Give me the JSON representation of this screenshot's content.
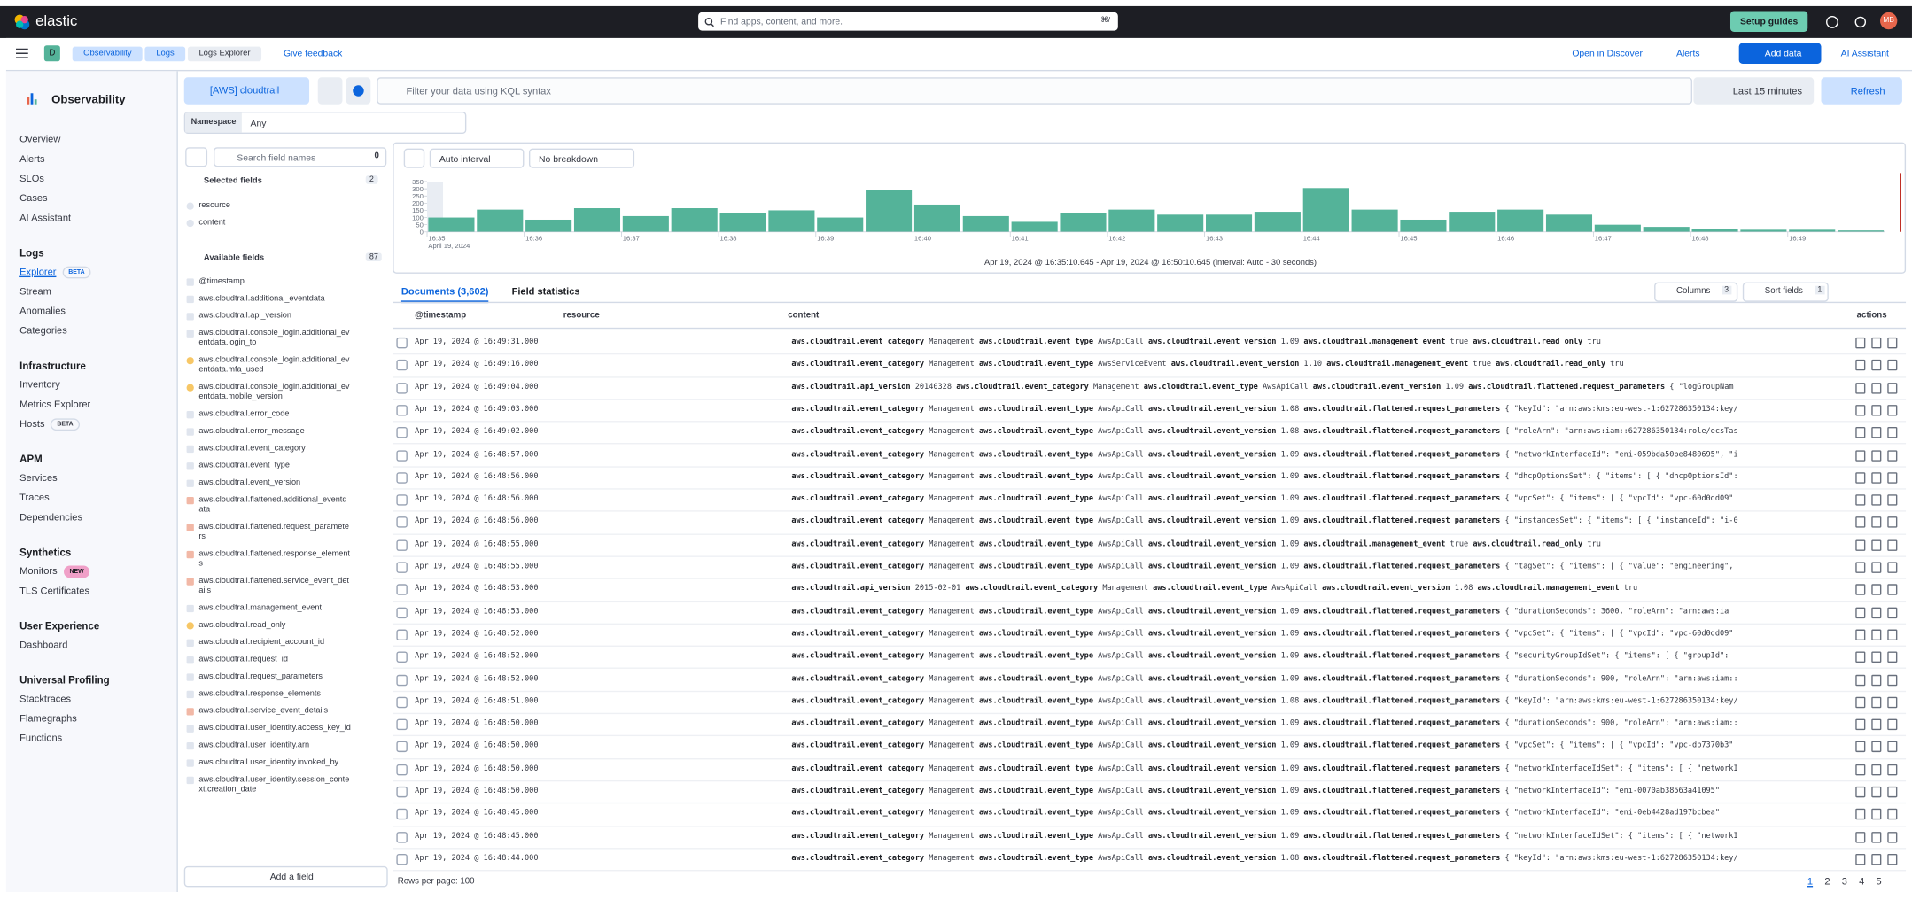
{
  "header": {
    "brand": "elastic",
    "search": "Find apps, content, and more.",
    "shortcut": "⌘/",
    "setup": "Setup guides",
    "avatar": "MB"
  },
  "breadcrumb": {
    "space": "D",
    "items": [
      "Observability",
      "Logs",
      "Logs Explorer"
    ],
    "feedback": "Give feedback",
    "open_discover": "Open in Discover",
    "alerts": "Alerts",
    "add_data": "Add data",
    "ai_assistant": "AI Assistant"
  },
  "sidebar": {
    "title": "Observability",
    "top_items": [
      {
        "label": "Overview"
      },
      {
        "label": "Alerts"
      },
      {
        "label": "SLOs"
      },
      {
        "label": "Cases"
      },
      {
        "label": "AI Assistant"
      }
    ],
    "sections": [
      {
        "heading": "Logs",
        "items": [
          {
            "label": "Explorer",
            "badge": "BETA"
          },
          {
            "label": "Stream"
          },
          {
            "label": "Anomalies"
          },
          {
            "label": "Categories"
          }
        ]
      },
      {
        "heading": "Infrastructure",
        "items": [
          {
            "label": "Inventory"
          },
          {
            "label": "Metrics Explorer"
          },
          {
            "label": "Hosts",
            "badge": "BETA"
          }
        ]
      },
      {
        "heading": "APM",
        "items": [
          {
            "label": "Services"
          },
          {
            "label": "Traces"
          },
          {
            "label": "Dependencies"
          }
        ]
      },
      {
        "heading": "Synthetics",
        "items": [
          {
            "label": "Monitors",
            "badge": "NEW"
          },
          {
            "label": "TLS Certificates"
          }
        ]
      },
      {
        "heading": "User Experience",
        "items": [
          {
            "label": "Dashboard"
          }
        ]
      },
      {
        "heading": "Universal Profiling",
        "items": [
          {
            "label": "Stacktraces"
          },
          {
            "label": "Flamegraphs"
          },
          {
            "label": "Functions"
          }
        ]
      }
    ]
  },
  "query": {
    "data_view": "[AWS] cloudtrail",
    "placeholder": "Filter your data using KQL syntax",
    "time": "Last 15 minutes",
    "refresh": "Refresh",
    "namespace_label": "Namespace",
    "namespace_value": "Any"
  },
  "fields": {
    "search_placeholder": "Search field names",
    "filter_count": 0,
    "selected_title": "Selected fields",
    "selected_count": 2,
    "selected": [
      "resource",
      "content"
    ],
    "available_title": "Available fields",
    "available_count": 87,
    "available": [
      "@timestamp",
      "aws.cloudtrail.additional_eventdata",
      "aws.cloudtrail.api_version",
      "aws.cloudtrail.console_login.additional_eventdata.login_to",
      "aws.cloudtrail.console_login.additional_eventdata.mfa_used",
      "aws.cloudtrail.console_login.additional_eventdata.mobile_version",
      "aws.cloudtrail.error_code",
      "aws.cloudtrail.error_message",
      "aws.cloudtrail.event_category",
      "aws.cloudtrail.event_type",
      "aws.cloudtrail.event_version",
      "aws.cloudtrail.flattened.additional_eventdata",
      "aws.cloudtrail.flattened.request_parameters",
      "aws.cloudtrail.flattened.response_elements",
      "aws.cloudtrail.flattened.service_event_details",
      "aws.cloudtrail.management_event",
      "aws.cloudtrail.read_only",
      "aws.cloudtrail.recipient_account_id",
      "aws.cloudtrail.request_id",
      "aws.cloudtrail.request_parameters",
      "aws.cloudtrail.response_elements",
      "aws.cloudtrail.service_event_details",
      "aws.cloudtrail.user_identity.access_key_id",
      "aws.cloudtrail.user_identity.arn",
      "aws.cloudtrail.user_identity.invoked_by",
      "aws.cloudtrail.user_identity.session_context.creation_date"
    ],
    "add": "Add a field"
  },
  "histogram": {
    "interval": "Auto interval",
    "breakdown": "No breakdown",
    "ylim": [
      0,
      350
    ],
    "yticks": [
      0,
      50,
      100,
      150,
      200,
      250,
      300,
      350
    ],
    "x_labels": [
      "16:35",
      "16:36",
      "16:37",
      "16:38",
      "16:39",
      "16:40",
      "16:41",
      "16:42",
      "16:43",
      "16:44",
      "16:45",
      "16:46",
      "16:47",
      "16:48",
      "16:49"
    ],
    "date_label": "April 19, 2024",
    "values": [
      100,
      155,
      85,
      165,
      110,
      165,
      130,
      150,
      100,
      290,
      190,
      110,
      70,
      130,
      155,
      120,
      120,
      140,
      305,
      155,
      85,
      140,
      155,
      120,
      50,
      35,
      20,
      15,
      15,
      10
    ],
    "range_caption": "Apr 19, 2024 @ 16:35:10.645 - Apr 19, 2024 @ 16:50:10.645 (interval: Auto - 30 seconds)"
  },
  "tabs": {
    "documents": "Documents (3,602)",
    "stats": "Field statistics",
    "columns": "Columns",
    "columns_count": 3,
    "sort": "Sort fields",
    "sort_count": 1
  },
  "table": {
    "columns": [
      "@timestamp",
      "resource",
      "content",
      "actions"
    ],
    "rows": [
      {
        "timestamp": "Apr 19, 2024 @ 16:49:31.000",
        "content": [
          "aws.cloudtrail.event_category",
          "Management",
          "aws.cloudtrail.event_type",
          "AwsApiCall",
          "aws.cloudtrail.event_version",
          "1.09",
          "aws.cloudtrail.management_event",
          "true",
          "aws.cloudtrail.read_only",
          "tru"
        ]
      },
      {
        "timestamp": "Apr 19, 2024 @ 16:49:16.000",
        "content": [
          "aws.cloudtrail.event_category",
          "Management",
          "aws.cloudtrail.event_type",
          "AwsServiceEvent",
          "aws.cloudtrail.event_version",
          "1.10",
          "aws.cloudtrail.management_event",
          "true",
          "aws.cloudtrail.read_only",
          "tru"
        ]
      },
      {
        "timestamp": "Apr 19, 2024 @ 16:49:04.000",
        "content": [
          "aws.cloudtrail.api_version",
          "20140328",
          "aws.cloudtrail.event_category",
          "Management",
          "aws.cloudtrail.event_type",
          "AwsApiCall",
          "aws.cloudtrail.event_version",
          "1.09",
          "aws.cloudtrail.flattened.request_parameters",
          "{ \"logGroupNam"
        ]
      },
      {
        "timestamp": "Apr 19, 2024 @ 16:49:03.000",
        "content": [
          "aws.cloudtrail.event_category",
          "Management",
          "aws.cloudtrail.event_type",
          "AwsApiCall",
          "aws.cloudtrail.event_version",
          "1.08",
          "aws.cloudtrail.flattened.request_parameters",
          "{ \"keyId\": \"arn:aws:kms:eu-west-1:627286350134:key/"
        ]
      },
      {
        "timestamp": "Apr 19, 2024 @ 16:49:02.000",
        "content": [
          "aws.cloudtrail.event_category",
          "Management",
          "aws.cloudtrail.event_type",
          "AwsApiCall",
          "aws.cloudtrail.event_version",
          "1.08",
          "aws.cloudtrail.flattened.request_parameters",
          "{ \"roleArn\": \"arn:aws:iam::627286350134:role/ecsTas"
        ]
      },
      {
        "timestamp": "Apr 19, 2024 @ 16:48:57.000",
        "content": [
          "aws.cloudtrail.event_category",
          "Management",
          "aws.cloudtrail.event_type",
          "AwsApiCall",
          "aws.cloudtrail.event_version",
          "1.09",
          "aws.cloudtrail.flattened.request_parameters",
          "{ \"networkInterfaceId\": \"eni-059bda50be8480695\", \"i"
        ]
      },
      {
        "timestamp": "Apr 19, 2024 @ 16:48:56.000",
        "content": [
          "aws.cloudtrail.event_category",
          "Management",
          "aws.cloudtrail.event_type",
          "AwsApiCall",
          "aws.cloudtrail.event_version",
          "1.09",
          "aws.cloudtrail.flattened.request_parameters",
          "{ \"dhcpOptionsSet\": { \"items\": [ { \"dhcpOptionsId\":"
        ]
      },
      {
        "timestamp": "Apr 19, 2024 @ 16:48:56.000",
        "content": [
          "aws.cloudtrail.event_category",
          "Management",
          "aws.cloudtrail.event_type",
          "AwsApiCall",
          "aws.cloudtrail.event_version",
          "1.09",
          "aws.cloudtrail.flattened.request_parameters",
          "{ \"vpcSet\": { \"items\": [ { \"vpcId\": \"vpc-60d0dd09\""
        ]
      },
      {
        "timestamp": "Apr 19, 2024 @ 16:48:56.000",
        "content": [
          "aws.cloudtrail.event_category",
          "Management",
          "aws.cloudtrail.event_type",
          "AwsApiCall",
          "aws.cloudtrail.event_version",
          "1.09",
          "aws.cloudtrail.flattened.request_parameters",
          "{ \"instancesSet\": { \"items\": [ { \"instanceId\": \"i-0"
        ]
      },
      {
        "timestamp": "Apr 19, 2024 @ 16:48:55.000",
        "content": [
          "aws.cloudtrail.event_category",
          "Management",
          "aws.cloudtrail.event_type",
          "AwsApiCall",
          "aws.cloudtrail.event_version",
          "1.09",
          "aws.cloudtrail.management_event",
          "true",
          "aws.cloudtrail.read_only",
          "tru"
        ]
      },
      {
        "timestamp": "Apr 19, 2024 @ 16:48:55.000",
        "content": [
          "aws.cloudtrail.event_category",
          "Management",
          "aws.cloudtrail.event_type",
          "AwsApiCall",
          "aws.cloudtrail.event_version",
          "1.09",
          "aws.cloudtrail.flattened.request_parameters",
          "{ \"tagSet\": { \"items\": [ { \"value\": \"engineering\","
        ]
      },
      {
        "timestamp": "Apr 19, 2024 @ 16:48:53.000",
        "content": [
          "aws.cloudtrail.api_version",
          "2015-02-01",
          "aws.cloudtrail.event_category",
          "Management",
          "aws.cloudtrail.event_type",
          "AwsApiCall",
          "aws.cloudtrail.event_version",
          "1.08",
          "aws.cloudtrail.management_event",
          "tru"
        ]
      },
      {
        "timestamp": "Apr 19, 2024 @ 16:48:53.000",
        "content": [
          "aws.cloudtrail.event_category",
          "Management",
          "aws.cloudtrail.event_type",
          "AwsApiCall",
          "aws.cloudtrail.event_version",
          "1.09",
          "aws.cloudtrail.flattened.request_parameters",
          "{ \"durationSeconds\": 3600, \"roleArn\": \"arn:aws:ia"
        ]
      },
      {
        "timestamp": "Apr 19, 2024 @ 16:48:52.000",
        "content": [
          "aws.cloudtrail.event_category",
          "Management",
          "aws.cloudtrail.event_type",
          "AwsApiCall",
          "aws.cloudtrail.event_version",
          "1.09",
          "aws.cloudtrail.flattened.request_parameters",
          "{ \"vpcSet\": { \"items\": [ { \"vpcId\": \"vpc-60d0dd09\""
        ]
      },
      {
        "timestamp": "Apr 19, 2024 @ 16:48:52.000",
        "content": [
          "aws.cloudtrail.event_category",
          "Management",
          "aws.cloudtrail.event_type",
          "AwsApiCall",
          "aws.cloudtrail.event_version",
          "1.09",
          "aws.cloudtrail.flattened.request_parameters",
          "{ \"securityGroupIdSet\": { \"items\": [ { \"groupId\":"
        ]
      },
      {
        "timestamp": "Apr 19, 2024 @ 16:48:52.000",
        "content": [
          "aws.cloudtrail.event_category",
          "Management",
          "aws.cloudtrail.event_type",
          "AwsApiCall",
          "aws.cloudtrail.event_version",
          "1.09",
          "aws.cloudtrail.flattened.request_parameters",
          "{ \"durationSeconds\": 900, \"roleArn\": \"arn:aws:iam::"
        ]
      },
      {
        "timestamp": "Apr 19, 2024 @ 16:48:51.000",
        "content": [
          "aws.cloudtrail.event_category",
          "Management",
          "aws.cloudtrail.event_type",
          "AwsApiCall",
          "aws.cloudtrail.event_version",
          "1.08",
          "aws.cloudtrail.flattened.request_parameters",
          "{ \"keyId\": \"arn:aws:kms:eu-west-1:627286350134:key/"
        ]
      },
      {
        "timestamp": "Apr 19, 2024 @ 16:48:50.000",
        "content": [
          "aws.cloudtrail.event_category",
          "Management",
          "aws.cloudtrail.event_type",
          "AwsApiCall",
          "aws.cloudtrail.event_version",
          "1.09",
          "aws.cloudtrail.flattened.request_parameters",
          "{ \"durationSeconds\": 900, \"roleArn\": \"arn:aws:iam::"
        ]
      },
      {
        "timestamp": "Apr 19, 2024 @ 16:48:50.000",
        "content": [
          "aws.cloudtrail.event_category",
          "Management",
          "aws.cloudtrail.event_type",
          "AwsApiCall",
          "aws.cloudtrail.event_version",
          "1.09",
          "aws.cloudtrail.flattened.request_parameters",
          "{ \"vpcSet\": { \"items\": [ { \"vpcId\": \"vpc-db7370b3\""
        ]
      },
      {
        "timestamp": "Apr 19, 2024 @ 16:48:50.000",
        "content": [
          "aws.cloudtrail.event_category",
          "Management",
          "aws.cloudtrail.event_type",
          "AwsApiCall",
          "aws.cloudtrail.event_version",
          "1.09",
          "aws.cloudtrail.flattened.request_parameters",
          "{ \"networkInterfaceIdSet\": { \"items\": [ { \"networkI"
        ]
      },
      {
        "timestamp": "Apr 19, 2024 @ 16:48:50.000",
        "content": [
          "aws.cloudtrail.event_category",
          "Management",
          "aws.cloudtrail.event_type",
          "AwsApiCall",
          "aws.cloudtrail.event_version",
          "1.09",
          "aws.cloudtrail.flattened.request_parameters",
          "{ \"networkInterfaceId\": \"eni-0070ab38563a41095\""
        ]
      },
      {
        "timestamp": "Apr 19, 2024 @ 16:48:45.000",
        "content": [
          "aws.cloudtrail.event_category",
          "Management",
          "aws.cloudtrail.event_type",
          "AwsApiCall",
          "aws.cloudtrail.event_version",
          "1.09",
          "aws.cloudtrail.flattened.request_parameters",
          "{ \"networkInterfaceId\": \"eni-0eb4428ad197bcbea\""
        ]
      },
      {
        "timestamp": "Apr 19, 2024 @ 16:48:45.000",
        "content": [
          "aws.cloudtrail.event_category",
          "Management",
          "aws.cloudtrail.event_type",
          "AwsApiCall",
          "aws.cloudtrail.event_version",
          "1.09",
          "aws.cloudtrail.flattened.request_parameters",
          "{ \"networkInterfaceIdSet\": { \"items\": [ { \"networkI"
        ]
      },
      {
        "timestamp": "Apr 19, 2024 @ 16:48:44.000",
        "content": [
          "aws.cloudtrail.event_category",
          "Management",
          "aws.cloudtrail.event_type",
          "AwsApiCall",
          "aws.cloudtrail.event_version",
          "1.08",
          "aws.cloudtrail.flattened.request_parameters",
          "{ \"keyId\": \"arn:aws:kms:eu-west-1:627286350134:key/"
        ]
      }
    ]
  },
  "footer": {
    "rows_per_page": "Rows per page: 100",
    "pages": [
      1,
      2,
      3,
      4,
      5
    ]
  }
}
